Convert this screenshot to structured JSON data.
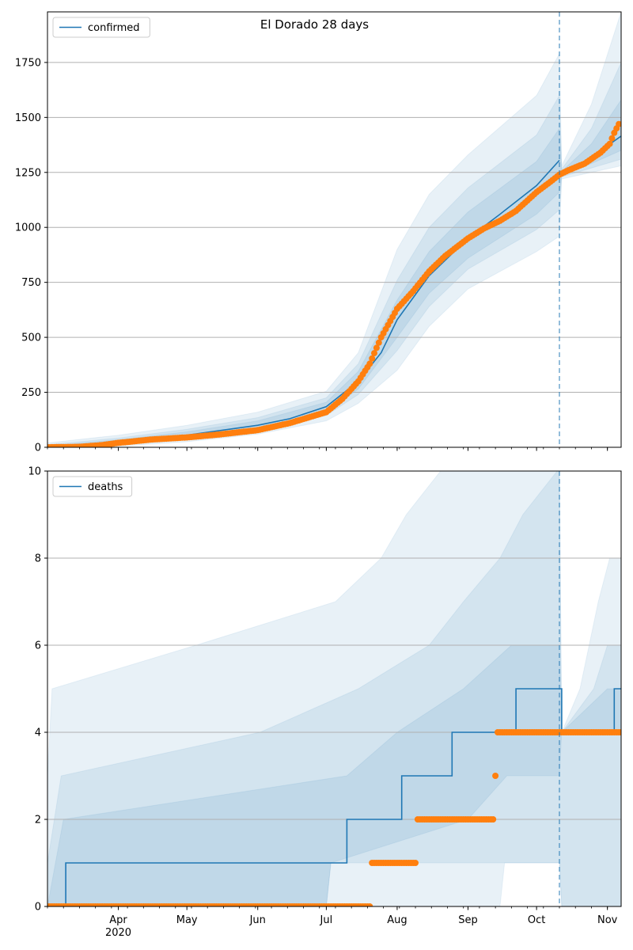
{
  "colors": {
    "line": "#1f77b4",
    "points": "#ff7f0e",
    "band": "#1f77b4",
    "grid": "#b0b0b0",
    "vline": "#1f77b4"
  },
  "chart_data": [
    {
      "id": "confirmed",
      "type": "line",
      "title": "El Dorado 28 days",
      "legend": {
        "label": "confirmed",
        "placement": "top-left"
      },
      "xlim": [
        "2020-03-01",
        "2020-11-07"
      ],
      "ylim": [
        0,
        1980
      ],
      "yticks": [
        0,
        250,
        500,
        750,
        1000,
        1250,
        1500,
        1750
      ],
      "grid": "y",
      "forecast_start": "2020-10-11",
      "model_line": [
        [
          "2020-03-01",
          0
        ],
        [
          "2020-03-15",
          3
        ],
        [
          "2020-04-01",
          25
        ],
        [
          "2020-05-01",
          55
        ],
        [
          "2020-06-01",
          100
        ],
        [
          "2020-06-15",
          130
        ],
        [
          "2020-07-01",
          185
        ],
        [
          "2020-07-15",
          300
        ],
        [
          "2020-07-25",
          430
        ],
        [
          "2020-08-01",
          580
        ],
        [
          "2020-08-15",
          780
        ],
        [
          "2020-09-01",
          950
        ],
        [
          "2020-09-15",
          1060
        ],
        [
          "2020-10-01",
          1190
        ],
        [
          "2020-10-11",
          1305
        ],
        [
          "2020-10-12",
          1240
        ],
        [
          "2020-10-25",
          1320
        ],
        [
          "2020-11-07",
          1415
        ]
      ],
      "bands": [
        {
          "upper": [
            [
              "2020-03-01",
              20
            ],
            [
              "2020-04-01",
              55
            ],
            [
              "2020-05-01",
              100
            ],
            [
              "2020-06-01",
              160
            ],
            [
              "2020-07-01",
              255
            ],
            [
              "2020-07-15",
              430
            ],
            [
              "2020-08-01",
              900
            ],
            [
              "2020-08-15",
              1150
            ],
            [
              "2020-09-01",
              1330
            ],
            [
              "2020-10-01",
              1600
            ],
            [
              "2020-10-11",
              1790
            ],
            [
              "2020-10-12",
              1280
            ],
            [
              "2020-10-25",
              1560
            ],
            [
              "2020-11-07",
              1980
            ]
          ],
          "lower": [
            [
              "2020-03-01",
              0
            ],
            [
              "2020-04-01",
              5
            ],
            [
              "2020-05-01",
              25
            ],
            [
              "2020-06-01",
              60
            ],
            [
              "2020-07-01",
              120
            ],
            [
              "2020-07-15",
              200
            ],
            [
              "2020-08-01",
              350
            ],
            [
              "2020-08-15",
              550
            ],
            [
              "2020-09-01",
              720
            ],
            [
              "2020-10-01",
              890
            ],
            [
              "2020-10-11",
              960
            ],
            [
              "2020-10-12",
              1220
            ],
            [
              "2020-10-25",
              1250
            ],
            [
              "2020-11-07",
              1280
            ]
          ]
        },
        {
          "upper": [
            [
              "2020-03-01",
              12
            ],
            [
              "2020-04-01",
              42
            ],
            [
              "2020-05-01",
              82
            ],
            [
              "2020-06-01",
              135
            ],
            [
              "2020-07-01",
              225
            ],
            [
              "2020-07-15",
              380
            ],
            [
              "2020-08-01",
              760
            ],
            [
              "2020-08-15",
              1000
            ],
            [
              "2020-09-01",
              1180
            ],
            [
              "2020-10-01",
              1420
            ],
            [
              "2020-10-11",
              1600
            ],
            [
              "2020-10-12",
              1265
            ],
            [
              "2020-10-25",
              1450
            ],
            [
              "2020-11-07",
              1750
            ]
          ],
          "lower": [
            [
              "2020-03-01",
              0
            ],
            [
              "2020-04-01",
              10
            ],
            [
              "2020-05-01",
              35
            ],
            [
              "2020-06-01",
              75
            ],
            [
              "2020-07-01",
              145
            ],
            [
              "2020-07-15",
              240
            ],
            [
              "2020-08-01",
              440
            ],
            [
              "2020-08-15",
              640
            ],
            [
              "2020-09-01",
              810
            ],
            [
              "2020-10-01",
              990
            ],
            [
              "2020-10-11",
              1080
            ],
            [
              "2020-10-12",
              1230
            ],
            [
              "2020-10-25",
              1270
            ],
            [
              "2020-11-07",
              1310
            ]
          ]
        },
        {
          "upper": [
            [
              "2020-03-01",
              6
            ],
            [
              "2020-04-01",
              34
            ],
            [
              "2020-05-01",
              70
            ],
            [
              "2020-06-01",
              120
            ],
            [
              "2020-07-01",
              205
            ],
            [
              "2020-07-15",
              345
            ],
            [
              "2020-08-01",
              670
            ],
            [
              "2020-08-15",
              890
            ],
            [
              "2020-09-01",
              1070
            ],
            [
              "2020-10-01",
              1300
            ],
            [
              "2020-10-11",
              1450
            ],
            [
              "2020-10-12",
              1255
            ],
            [
              "2020-10-25",
              1380
            ],
            [
              "2020-11-07",
              1580
            ]
          ],
          "lower": [
            [
              "2020-03-01",
              0
            ],
            [
              "2020-04-01",
              16
            ],
            [
              "2020-05-01",
              42
            ],
            [
              "2020-06-01",
              85
            ],
            [
              "2020-07-01",
              160
            ],
            [
              "2020-07-15",
              265
            ],
            [
              "2020-08-01",
              500
            ],
            [
              "2020-08-15",
              700
            ],
            [
              "2020-09-01",
              860
            ],
            [
              "2020-10-01",
              1060
            ],
            [
              "2020-10-11",
              1160
            ],
            [
              "2020-10-12",
              1235
            ],
            [
              "2020-10-25",
              1290
            ],
            [
              "2020-11-07",
              1350
            ]
          ]
        }
      ],
      "observed": [
        [
          "2020-03-01",
          0
        ],
        [
          "2020-03-15",
          2
        ],
        [
          "2020-03-25",
          10
        ],
        [
          "2020-04-01",
          20
        ],
        [
          "2020-04-15",
          35
        ],
        [
          "2020-05-01",
          45
        ],
        [
          "2020-05-15",
          58
        ],
        [
          "2020-06-01",
          78
        ],
        [
          "2020-06-15",
          110
        ],
        [
          "2020-07-01",
          160
        ],
        [
          "2020-07-08",
          220
        ],
        [
          "2020-07-15",
          300
        ],
        [
          "2020-07-20",
          380
        ],
        [
          "2020-07-25",
          500
        ],
        [
          "2020-08-01",
          630
        ],
        [
          "2020-08-08",
          710
        ],
        [
          "2020-08-15",
          800
        ],
        [
          "2020-08-22",
          870
        ],
        [
          "2020-09-01",
          950
        ],
        [
          "2020-09-08",
          995
        ],
        [
          "2020-09-15",
          1030
        ],
        [
          "2020-09-22",
          1075
        ],
        [
          "2020-10-01",
          1160
        ],
        [
          "2020-10-08",
          1215
        ],
        [
          "2020-10-11",
          1240
        ],
        [
          "2020-10-15",
          1260
        ],
        [
          "2020-10-22",
          1290
        ],
        [
          "2020-10-29",
          1340
        ],
        [
          "2020-11-02",
          1380
        ],
        [
          "2020-11-04",
          1430
        ],
        [
          "2020-11-06",
          1470
        ]
      ]
    },
    {
      "id": "deaths",
      "type": "line",
      "title": "",
      "legend": {
        "label": "deaths",
        "placement": "top-left"
      },
      "xlim": [
        "2020-03-01",
        "2020-11-07"
      ],
      "ylim": [
        0,
        10
      ],
      "yticks": [
        0,
        2,
        4,
        6,
        8,
        10
      ],
      "grid": "y",
      "forecast_start": "2020-10-11",
      "model_steps": [
        [
          "2020-03-01",
          0
        ],
        [
          "2020-03-09",
          1
        ],
        [
          "2020-07-10",
          2
        ],
        [
          "2020-08-03",
          3
        ],
        [
          "2020-08-25",
          4
        ],
        [
          "2020-09-22",
          5
        ],
        [
          "2020-10-12",
          4
        ],
        [
          "2020-11-04",
          5
        ],
        [
          "2020-11-07",
          5
        ]
      ],
      "bands": [
        {
          "upper": [
            [
              "2020-03-01",
              3
            ],
            [
              "2020-03-03",
              5
            ],
            [
              "2020-05-05",
              6
            ],
            [
              "2020-07-05",
              7
            ],
            [
              "2020-07-25",
              8
            ],
            [
              "2020-08-05",
              9
            ],
            [
              "2020-08-20",
              10
            ],
            [
              "2020-10-11",
              10
            ],
            [
              "2020-10-12",
              4
            ],
            [
              "2020-10-20",
              5
            ],
            [
              "2020-10-28",
              7
            ],
            [
              "2020-11-02",
              8
            ],
            [
              "2020-11-07",
              8
            ]
          ],
          "lower": [
            [
              "2020-03-01",
              0
            ],
            [
              "2020-09-15",
              0
            ],
            [
              "2020-09-17",
              1
            ],
            [
              "2020-10-11",
              1
            ],
            [
              "2020-10-12",
              0
            ],
            [
              "2020-11-07",
              0
            ]
          ]
        },
        {
          "upper": [
            [
              "2020-03-01",
              1
            ],
            [
              "2020-03-07",
              3
            ],
            [
              "2020-06-02",
              4
            ],
            [
              "2020-07-15",
              5
            ],
            [
              "2020-08-15",
              6
            ],
            [
              "2020-08-30",
              7
            ],
            [
              "2020-09-15",
              8
            ],
            [
              "2020-09-25",
              9
            ],
            [
              "2020-10-10",
              10
            ],
            [
              "2020-10-11",
              10
            ],
            [
              "2020-10-12",
              4
            ],
            [
              "2020-10-26",
              5
            ],
            [
              "2020-11-01",
              6
            ],
            [
              "2020-11-07",
              6
            ]
          ],
          "lower": [
            [
              "2020-03-01",
              0
            ],
            [
              "2020-07-01",
              0
            ],
            [
              "2020-07-03",
              1
            ],
            [
              "2020-08-01",
              1
            ],
            [
              "2020-09-15",
              1
            ],
            [
              "2020-10-11",
              1
            ],
            [
              "2020-10-12",
              0
            ],
            [
              "2020-11-07",
              0
            ]
          ]
        },
        {
          "upper": [
            [
              "2020-03-01",
              0
            ],
            [
              "2020-03-08",
              2
            ],
            [
              "2020-07-10",
              3
            ],
            [
              "2020-08-01",
              4
            ],
            [
              "2020-08-30",
              5
            ],
            [
              "2020-09-20",
              6
            ],
            [
              "2020-10-11",
              6
            ],
            [
              "2020-10-12",
              4
            ],
            [
              "2020-11-01",
              5
            ],
            [
              "2020-11-07",
              5
            ]
          ],
          "lower": [
            [
              "2020-03-01",
              0
            ],
            [
              "2020-07-01",
              0
            ],
            [
              "2020-07-03",
              1
            ],
            [
              "2020-09-01",
              2
            ],
            [
              "2020-09-18",
              3
            ],
            [
              "2020-10-11",
              3
            ],
            [
              "2020-10-12",
              4
            ],
            [
              "2020-11-07",
              4
            ]
          ]
        }
      ],
      "observed_segments": [
        {
          "from": "2020-03-01",
          "to": "2020-07-20",
          "value": 0
        },
        {
          "from": "2020-07-21",
          "to": "2020-08-09",
          "value": 1
        },
        {
          "from": "2020-08-10",
          "to": "2020-09-12",
          "value": 2
        },
        {
          "from": "2020-09-13",
          "to": "2020-09-13",
          "value": 3
        },
        {
          "from": "2020-09-14",
          "to": "2020-11-07",
          "value": 4
        }
      ]
    }
  ],
  "x_ticks": [
    {
      "date": "2020-04-01",
      "label": "Apr",
      "sublabel": "2020"
    },
    {
      "date": "2020-05-01",
      "label": "May",
      "sublabel": ""
    },
    {
      "date": "2020-06-01",
      "label": "Jun",
      "sublabel": ""
    },
    {
      "date": "2020-07-01",
      "label": "Jul",
      "sublabel": ""
    },
    {
      "date": "2020-08-01",
      "label": "Aug",
      "sublabel": ""
    },
    {
      "date": "2020-09-01",
      "label": "Sep",
      "sublabel": ""
    },
    {
      "date": "2020-10-01",
      "label": "Oct",
      "sublabel": ""
    },
    {
      "date": "2020-11-01",
      "label": "Nov",
      "sublabel": ""
    }
  ]
}
